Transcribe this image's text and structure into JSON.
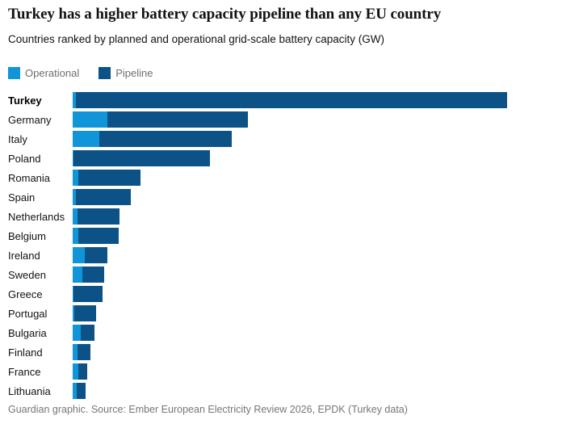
{
  "header": {
    "title": "Turkey has a higher battery capacity pipeline than any EU country",
    "subtitle": "Countries ranked by planned and operational grid-scale battery capacity (GW)"
  },
  "footer": {
    "source": "Guardian graphic. Source: Ember European Electricity Review 2026, EPDK (Turkey data)"
  },
  "colors": {
    "operational": "#1095d9",
    "pipeline": "#0c5287"
  },
  "chart_data": {
    "type": "bar",
    "orientation": "horizontal",
    "stacked": true,
    "unit": "GW",
    "title": "Turkey has a higher battery capacity pipeline than any EU country",
    "subtitle": "Countries ranked by planned and operational grid-scale battery capacity (GW)",
    "legend_position": "top-left",
    "grid": false,
    "xlim": [
      0,
      36
    ],
    "highlight_category": "Turkey",
    "categories": [
      "Turkey",
      "Germany",
      "Italy",
      "Poland",
      "Romania",
      "Spain",
      "Netherlands",
      "Belgium",
      "Ireland",
      "Sweden",
      "Greece",
      "Portugal",
      "Bulgaria",
      "Finland",
      "France",
      "Lithuania"
    ],
    "series": [
      {
        "name": "Operational",
        "color": "#1095d9",
        "values": [
          0.3,
          2.9,
          2.2,
          0.05,
          0.5,
          0.3,
          0.4,
          0.5,
          1.0,
          0.8,
          0.05,
          0.15,
          0.7,
          0.4,
          0.5,
          0.35
        ]
      },
      {
        "name": "Pipeline",
        "color": "#0c5287",
        "values": [
          35.7,
          11.6,
          11.0,
          11.3,
          5.1,
          4.5,
          3.5,
          3.3,
          1.9,
          1.8,
          2.4,
          1.8,
          1.1,
          1.1,
          0.7,
          0.7
        ]
      }
    ]
  }
}
